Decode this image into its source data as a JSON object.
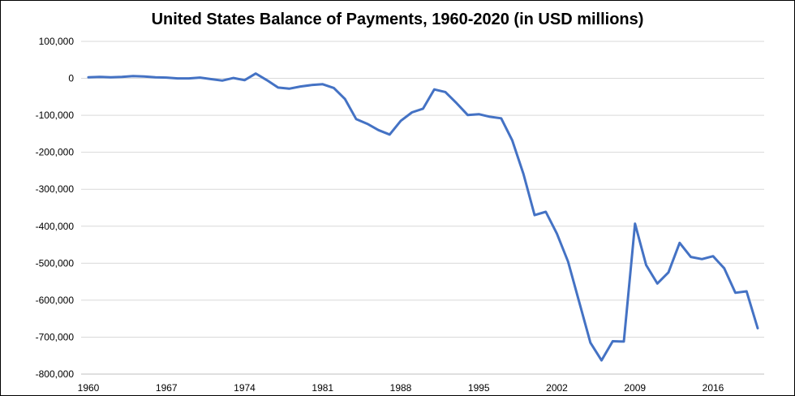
{
  "chart_data": {
    "type": "line",
    "title": "United States Balance of Payments, 1960-2020 (in USD millions)",
    "xlabel": "",
    "ylabel": "",
    "xlim": [
      1960,
      2020
    ],
    "ylim": [
      -800000,
      100000
    ],
    "y_ticks": [
      100000,
      0,
      -100000,
      -200000,
      -300000,
      -400000,
      -500000,
      -600000,
      -700000,
      -800000
    ],
    "y_tick_labels": [
      "100,000",
      "0",
      "-100,000",
      "-200,000",
      "-300,000",
      "-400,000",
      "-500,000",
      "-600,000",
      "-700,000",
      "-800,000"
    ],
    "x_ticks": [
      1960,
      1967,
      1974,
      1981,
      1988,
      1995,
      2002,
      2009,
      2016
    ],
    "x_tick_labels": [
      "1960",
      "1967",
      "1974",
      "1981",
      "1988",
      "1995",
      "2002",
      "2009",
      "2016"
    ],
    "grid": "horizontal",
    "legend": "none",
    "line_color": "#4472C4",
    "series": [
      {
        "x": [
          1960,
          1961,
          1962,
          1963,
          1964,
          1965,
          1966,
          1967,
          1968,
          1969,
          1970,
          1971,
          1972,
          1973,
          1974,
          1975,
          1976,
          1977,
          1978,
          1979,
          1980,
          1981,
          1982,
          1983,
          1984,
          1985,
          1986,
          1987,
          1988,
          1989,
          1990,
          1991,
          1992,
          1993,
          1994,
          1995,
          1996,
          1997,
          1998,
          1999,
          2000,
          2001,
          2002,
          2003,
          2004,
          2005,
          2006,
          2007,
          2008,
          2009,
          2010,
          2011,
          2012,
          2013,
          2014,
          2015,
          2016,
          2017,
          2018,
          2019,
          2020
        ],
        "values": [
          3000,
          4000,
          3000,
          4000,
          6000,
          5000,
          3000,
          2000,
          0,
          0,
          2000,
          -2000,
          -6000,
          1000,
          -5000,
          13000,
          -5000,
          -25000,
          -28000,
          -22000,
          -18000,
          -16000,
          -26000,
          -56000,
          -110000,
          -123000,
          -140000,
          -152000,
          -115000,
          -92000,
          -82000,
          -30000,
          -37000,
          -67000,
          -99000,
          -97000,
          -104000,
          -108000,
          -168000,
          -259000,
          -370000,
          -361000,
          -420000,
          -496000,
          -605000,
          -715000,
          -763000,
          -711000,
          -712000,
          -393000,
          -505000,
          -555000,
          -525000,
          -445000,
          -483000,
          -489000,
          -481000,
          -514000,
          -580000,
          -576000,
          -676000
        ]
      }
    ]
  }
}
